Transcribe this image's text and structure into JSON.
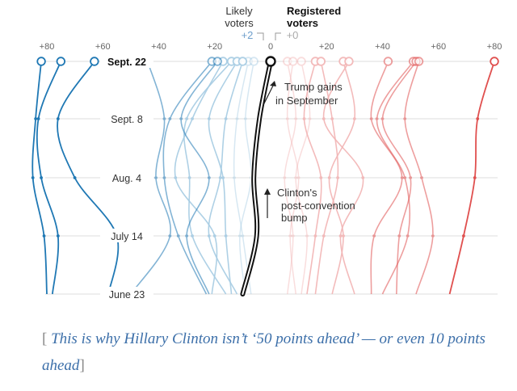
{
  "chart_data": {
    "type": "line",
    "orientation": "vertical-time",
    "header": {
      "likely_label_1": "Likely",
      "likely_label_2": "voters",
      "likely_value": "+2",
      "registered_label_1": "Registered",
      "registered_label_2": "voters",
      "registered_value": "+0"
    },
    "x_ticks": [
      {
        "value": -80,
        "label": "+80"
      },
      {
        "value": -60,
        "label": "+60"
      },
      {
        "value": -40,
        "label": "+40"
      },
      {
        "value": -20,
        "label": "+20"
      },
      {
        "value": 0,
        "label": "0"
      },
      {
        "value": 20,
        "label": "+20"
      },
      {
        "value": 40,
        "label": "+40"
      },
      {
        "value": 60,
        "label": "+60"
      },
      {
        "value": 80,
        "label": "+80"
      }
    ],
    "xlim": [
      -80,
      80
    ],
    "dates": [
      "Sept. 22",
      "Sept. 8",
      "Aug. 4",
      "July 14",
      "June 23"
    ],
    "colors": {
      "clinton_dark": "#1f78b4",
      "clinton_light": "#a6cce3",
      "trump_dark": "#e0504f",
      "trump_light": "#f2b4b4",
      "national": "#111111",
      "grid": "#dddddd"
    },
    "series": [
      {
        "group": "clinton",
        "strength": "strong",
        "values": [
          -82,
          -84,
          -85,
          -81,
          -80
        ]
      },
      {
        "group": "clinton",
        "strength": "strong",
        "values": [
          -75,
          -83,
          -82,
          -76,
          -78
        ]
      },
      {
        "group": "clinton",
        "strength": "strong",
        "values": [
          -63,
          -76,
          -70,
          -55,
          -58
        ]
      },
      {
        "group": "clinton",
        "strength": "medium",
        "values": [
          -44,
          -38,
          -41,
          -36,
          -50
        ]
      },
      {
        "group": "clinton",
        "strength": "medium",
        "values": [
          -21,
          -36,
          -38,
          -33,
          -23
        ]
      },
      {
        "group": "clinton",
        "strength": "medium",
        "values": [
          -19,
          -32,
          -22,
          -30,
          -22
        ]
      },
      {
        "group": "clinton",
        "strength": "light",
        "values": [
          -17,
          -28,
          -34,
          -20,
          -21
        ]
      },
      {
        "group": "clinton",
        "strength": "light",
        "values": [
          -14,
          -30,
          -29,
          -28,
          -16
        ]
      },
      {
        "group": "clinton",
        "strength": "light",
        "values": [
          -12,
          -22,
          -17,
          -16,
          -14
        ]
      },
      {
        "group": "clinton",
        "strength": "light",
        "values": [
          -10,
          -16,
          -18,
          -22,
          -12
        ]
      },
      {
        "group": "clinton",
        "strength": "faint",
        "values": [
          -8,
          -12,
          -13,
          -10,
          -7
        ]
      },
      {
        "group": "clinton",
        "strength": "faint",
        "values": [
          -6,
          -9,
          -7,
          -11,
          -9
        ]
      },
      {
        "group": "trump",
        "strength": "faint",
        "values": [
          6,
          9,
          5,
          8,
          6
        ]
      },
      {
        "group": "trump",
        "strength": "faint",
        "values": [
          8,
          6,
          10,
          7,
          9
        ]
      },
      {
        "group": "trump",
        "strength": "faint",
        "values": [
          11,
          14,
          9,
          13,
          11
        ]
      },
      {
        "group": "trump",
        "strength": "light",
        "values": [
          16,
          12,
          18,
          16,
          13
        ]
      },
      {
        "group": "trump",
        "strength": "light",
        "values": [
          18,
          22,
          24,
          19,
          16
        ]
      },
      {
        "group": "trump",
        "strength": "light",
        "values": [
          26,
          30,
          21,
          26,
          22
        ]
      },
      {
        "group": "trump",
        "strength": "light",
        "values": [
          28,
          19,
          33,
          25,
          30
        ]
      },
      {
        "group": "trump",
        "strength": "medium",
        "values": [
          42,
          36,
          47,
          37,
          36
        ]
      },
      {
        "group": "trump",
        "strength": "medium",
        "values": [
          51,
          38,
          48,
          49,
          40
        ]
      },
      {
        "group": "trump",
        "strength": "medium",
        "values": [
          52,
          40,
          50,
          46,
          45
        ]
      },
      {
        "group": "trump",
        "strength": "medium",
        "values": [
          53,
          48,
          54,
          58,
          52
        ]
      },
      {
        "group": "trump",
        "strength": "strong",
        "values": [
          80,
          74,
          73,
          69,
          64
        ]
      },
      {
        "group": "national",
        "strength": "strong",
        "values": [
          0,
          -4,
          -6,
          -5,
          -10
        ]
      }
    ],
    "annotations": [
      {
        "line1": "Trump gains",
        "line2": "in September",
        "line3": ""
      },
      {
        "line1": "Clinton's",
        "line2": "post-convention",
        "line3": "bump"
      }
    ]
  },
  "caption": {
    "bracket_open": "[",
    "text": "This is why Hillary Clinton isn’t ‘50 points ahead’ — or even 10 points ahead",
    "bracket_close": "]"
  }
}
